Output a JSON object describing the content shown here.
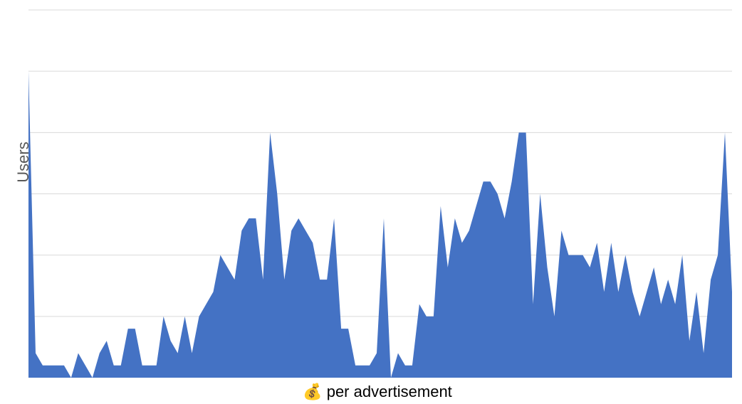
{
  "chart_data": {
    "type": "area",
    "xlabel": "💰 per advertisement",
    "ylabel": "Users",
    "color": "#4472c4",
    "grid": true,
    "ylim": [
      0,
      30
    ],
    "y_gridlines": [
      0,
      5,
      10,
      15,
      20,
      25,
      30
    ],
    "series": [
      {
        "values": [
          25,
          2,
          1,
          1,
          1,
          1,
          0,
          2,
          1,
          0,
          2,
          3,
          1,
          1,
          4,
          4,
          1,
          1,
          1,
          5,
          3,
          2,
          5,
          2,
          5,
          6,
          7,
          10,
          9,
          8,
          12,
          13,
          13,
          8,
          20,
          15,
          8,
          12,
          13,
          12,
          11,
          8,
          8,
          13,
          4,
          4,
          1,
          1,
          1,
          2,
          13,
          0,
          2,
          1,
          1,
          6,
          5,
          5,
          14,
          9,
          13,
          11,
          12,
          14,
          16,
          16,
          15,
          13,
          16,
          20,
          20,
          6,
          15,
          9,
          5,
          12,
          10,
          10,
          10,
          9,
          11,
          7,
          11,
          7,
          10,
          7,
          5,
          7,
          9,
          6,
          8,
          6,
          10,
          3,
          7,
          2,
          8,
          10,
          20,
          7
        ]
      }
    ]
  }
}
